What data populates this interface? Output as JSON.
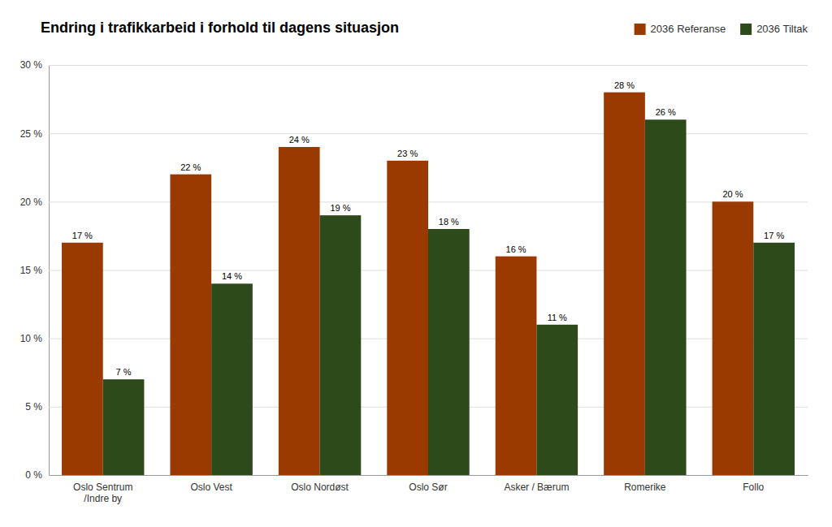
{
  "chart_data": {
    "type": "bar",
    "title": "Endring i trafikkarbeid i forhold til dagens situasjon",
    "categories": [
      "Oslo Sentrum\n/Indre by",
      "Oslo Vest",
      "Oslo Nordøst",
      "Oslo Sør",
      "Asker / Bærum",
      "Romerike",
      "Follo"
    ],
    "series": [
      {
        "name": "2036 Referanse",
        "color": "#9B3A00",
        "values": [
          17,
          22,
          24,
          23,
          16,
          28,
          20
        ],
        "value_labels": [
          "17 %",
          "22 %",
          "24 %",
          "23 %",
          "16 %",
          "28 %",
          "20 %"
        ]
      },
      {
        "name": "2036 Tiltak",
        "color": "#2D4A1A",
        "values": [
          7,
          14,
          19,
          18,
          11,
          26,
          17
        ],
        "value_labels": [
          "7 %",
          "14 %",
          "19 %",
          "18 %",
          "11 %",
          "26 %",
          "17 %"
        ]
      }
    ],
    "ylim": [
      0,
      30
    ],
    "yticks": [
      {
        "value": 0,
        "label": "0 %"
      },
      {
        "value": 5,
        "label": "5 %"
      },
      {
        "value": 10,
        "label": "10 %"
      },
      {
        "value": 15,
        "label": "15 %"
      },
      {
        "value": 20,
        "label": "20 %"
      },
      {
        "value": 25,
        "label": "25 %"
      },
      {
        "value": 30,
        "label": "30 %"
      }
    ],
    "grid": true,
    "legend": "upper right",
    "data_labels": true
  }
}
